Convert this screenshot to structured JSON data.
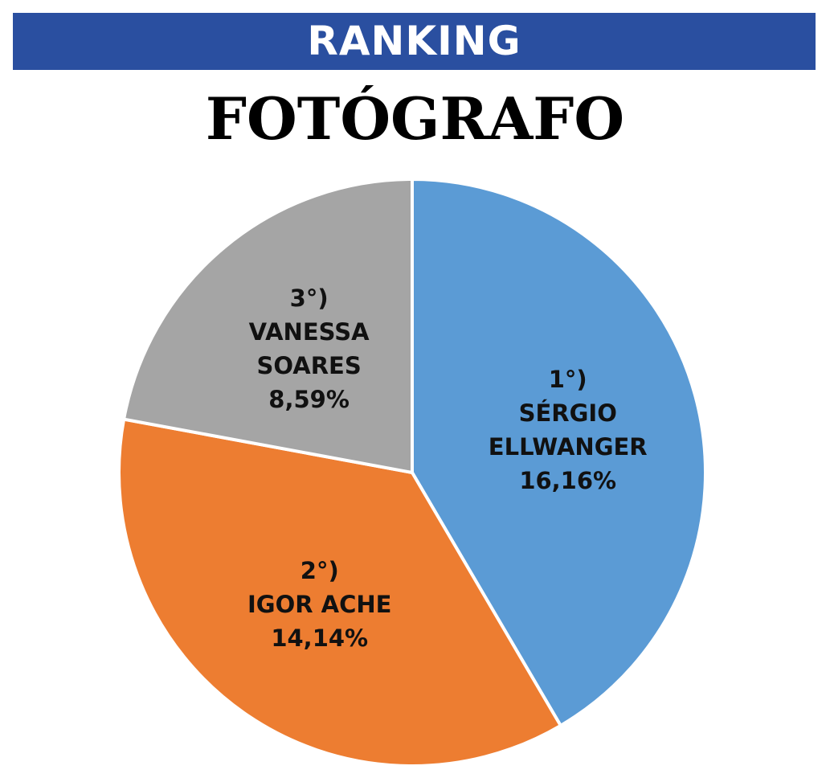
{
  "chart_data": {
    "type": "pie",
    "header": "RANKING",
    "title": "FOTÓGRAFO",
    "ranks": [
      "1°)",
      "2°)",
      "3°)"
    ],
    "categories": [
      "SÉRGIO ELLWANGER",
      "IGOR ACHE",
      "VANESSA SOARES"
    ],
    "values": [
      16.16,
      14.14,
      8.59
    ],
    "value_labels": [
      "16,16%",
      "14,14%",
      "8,59%"
    ],
    "colors": [
      "#5b9bd5",
      "#ed7d31",
      "#a5a5a5"
    ]
  }
}
